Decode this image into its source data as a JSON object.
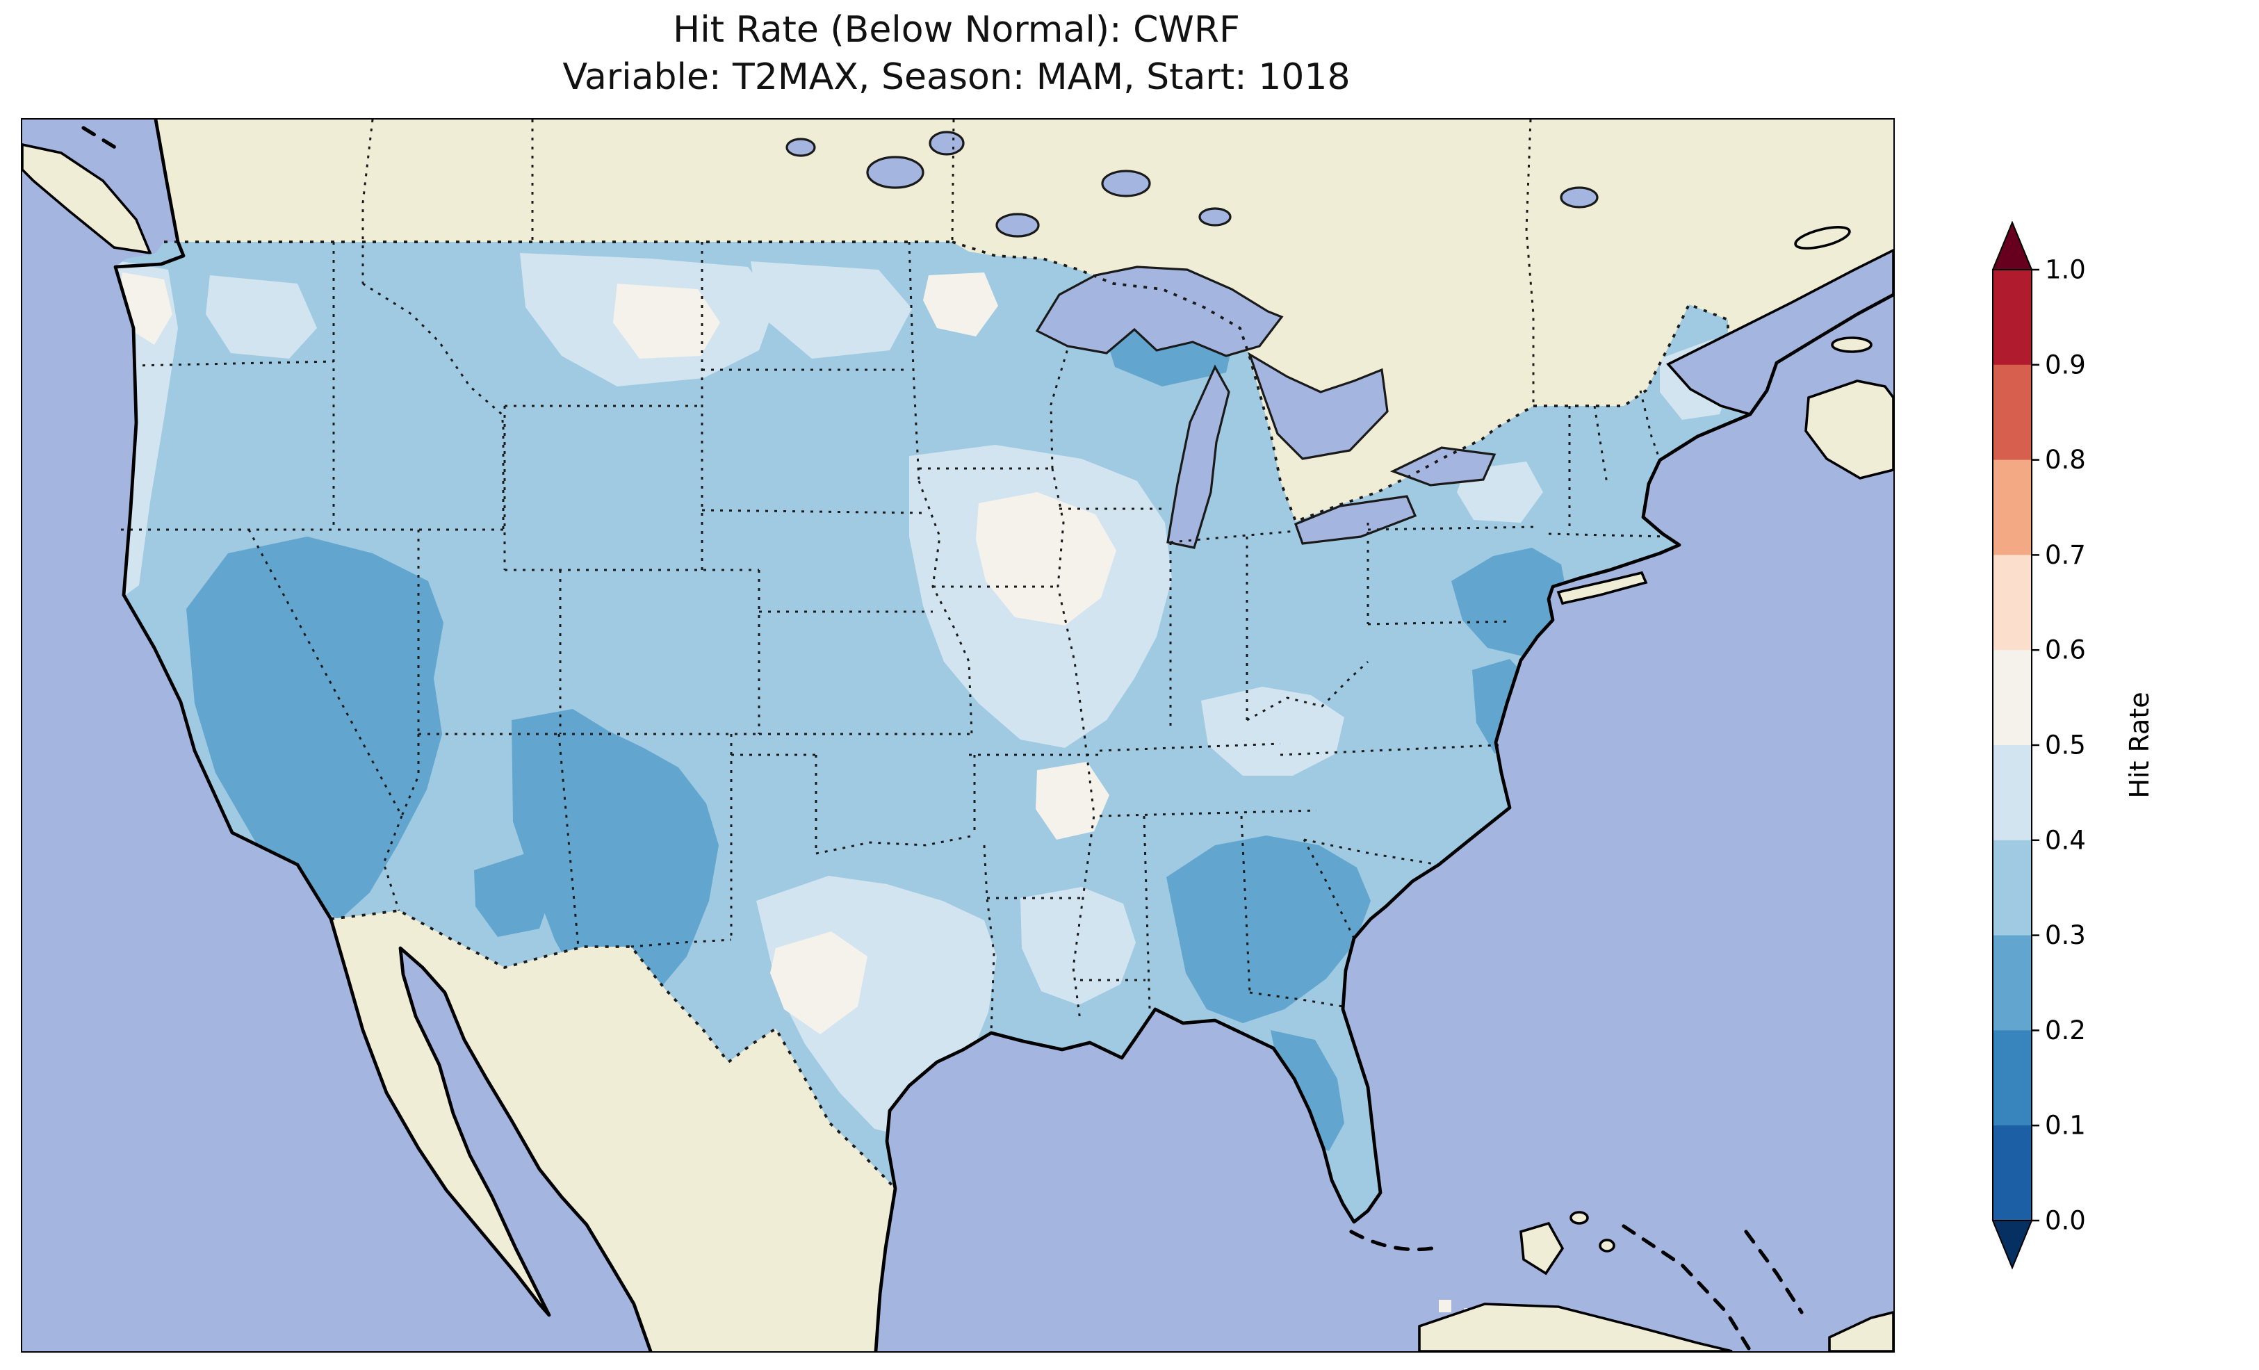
{
  "figure": {
    "title_line1": "Hit Rate (Below Normal): CWRF",
    "title_line2": "Variable: T2MAX, Season: MAM, Start: 1018"
  },
  "colorbar": {
    "label": "Hit Rate",
    "ticks": [
      "1.0",
      "0.9",
      "0.8",
      "0.7",
      "0.6",
      "0.5",
      "0.4",
      "0.3",
      "0.2",
      "0.1",
      "0.0"
    ],
    "bin_colors_top_to_bottom": [
      "#b01c2e",
      "#d75f4d",
      "#f4a985",
      "#fbdecb",
      "#f5f2ec",
      "#d2e4f0",
      "#9fcae1",
      "#62a6cf",
      "#3884bc",
      "#1d5fa5"
    ],
    "extend_over_color": "#67001f",
    "extend_under_color": "#053061",
    "colormap": "RdBu_r",
    "extend": "both"
  },
  "map": {
    "ocean_color": "#a4b6df",
    "land_color": "#f0edd6",
    "lake_color": "#a4b6df",
    "coastline_color": "#000000",
    "hit_rate_bin_colors": {
      "hr_02_03": "#62a6cf",
      "hr_03_04": "#9fcae1",
      "hr_04_05": "#d2e4f0",
      "hr_05_06": "#f5f2ec"
    }
  },
  "chart_data": {
    "type": "heatmap",
    "title": "Hit Rate (Below Normal): CWRF",
    "subtitle": "Variable: T2MAX, Season: MAM, Start: 1018",
    "geography": "Contiguous United States (CONUS), gridded forecast verification map",
    "colorbar": {
      "label": "Hit Rate",
      "ticks": [
        0.0,
        0.1,
        0.2,
        0.3,
        0.4,
        0.5,
        0.6,
        0.7,
        0.8,
        0.9,
        1.0
      ],
      "range": [
        0.0,
        1.0
      ],
      "colormap": "RdBu_r",
      "extend": "both",
      "position": "right"
    },
    "regions": [
      {
        "region": "Most of CONUS (background field)",
        "hit_rate": "0.3-0.4"
      },
      {
        "region": "Nevada / eastern California / western Utah",
        "hit_rate": "0.2-0.3"
      },
      {
        "region": "Four Corners: SE Utah, SW Colorado, N New Mexico",
        "hit_rate": "0.2-0.3"
      },
      {
        "region": "Central Arizona (small patch)",
        "hit_rate": "0.2-0.3"
      },
      {
        "region": "Alabama / Georgia / western South Carolina",
        "hit_rate": "0.2-0.3"
      },
      {
        "region": "West Florida gulf coast",
        "hit_rate": "0.2-0.3"
      },
      {
        "region": "New Jersey / eastern Pennsylvania",
        "hit_rate": "0.2-0.3"
      },
      {
        "region": "Delmarva / Chesapeake Bay area",
        "hit_rate": "0.2-0.3"
      },
      {
        "region": "South shore of Lake Superior (Upper Michigan)",
        "hit_rate": "0.2-0.3"
      },
      {
        "region": "Pacific Northwest coastal strip",
        "hit_rate": "0.4-0.5"
      },
      {
        "region": "Central/eastern Texas",
        "hit_rate": "0.4-0.5"
      },
      {
        "region": "West-central Texas core",
        "hit_rate": "0.5-0.6"
      },
      {
        "region": "Upper Midwest: S Minnesota / Iowa / SW Wisconsin / N Missouri",
        "hit_rate": "0.4-0.6"
      },
      {
        "region": "Central Montana",
        "hit_rate": "0.5-0.6"
      },
      {
        "region": "Ohio Valley / Kentucky",
        "hit_rate": "0.4-0.5"
      },
      {
        "region": "Northern Louisiana / Mississippi",
        "hit_rate": "0.4-0.5"
      }
    ],
    "notes": "No values above ~0.6 appear on the map; non-US land (Canada, Mexico) is unshaded."
  }
}
